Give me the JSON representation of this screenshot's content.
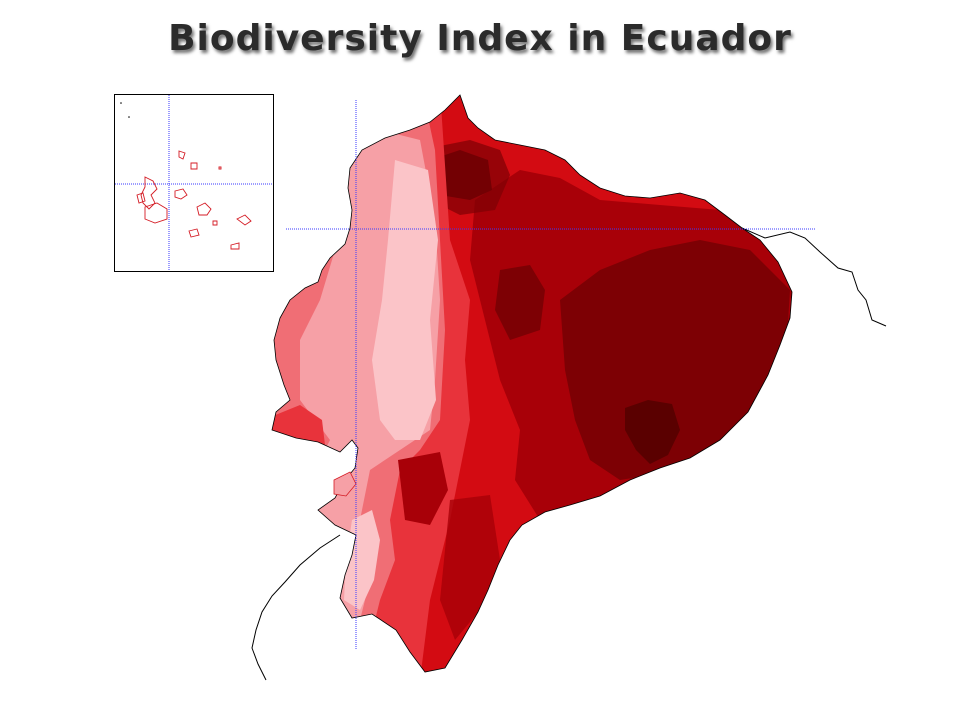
{
  "title": "Biodiversity Index in Ecuador",
  "colors": {
    "level1": "#fbc4c8",
    "level2": "#f6a0a6",
    "level3": "#f06e75",
    "level4": "#e8333b",
    "level5": "#d30b12",
    "level6": "#a80008",
    "level7": "#7d0004",
    "level8": "#5a0000",
    "gridline": "#3a3aff",
    "border": "#000000",
    "island_outline": "#d41b24"
  }
}
